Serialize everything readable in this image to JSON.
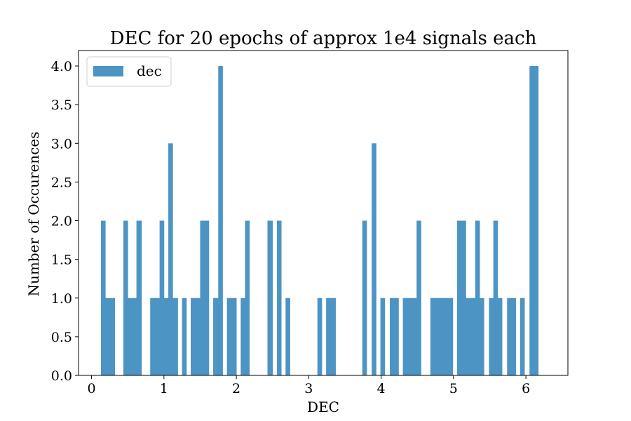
{
  "chart_data": {
    "type": "bar",
    "title": "DEC for 20 epochs of approx 1e4 signals each",
    "xlabel": "DEC",
    "ylabel": "Number of Occurences",
    "xlim": [
      -0.18,
      6.58
    ],
    "ylim": [
      0,
      4.2
    ],
    "xticks": [
      {
        "value": 0,
        "label": "0"
      },
      {
        "value": 1,
        "label": "1"
      },
      {
        "value": 2,
        "label": "2"
      },
      {
        "value": 3,
        "label": "3"
      },
      {
        "value": 4,
        "label": "4"
      },
      {
        "value": 5,
        "label": "5"
      },
      {
        "value": 6,
        "label": "6"
      }
    ],
    "yticks": [
      {
        "value": 0,
        "label": "0.0"
      },
      {
        "value": 0.5,
        "label": "0.5"
      },
      {
        "value": 1,
        "label": "1.0"
      },
      {
        "value": 1.5,
        "label": "1.5"
      },
      {
        "value": 2,
        "label": "2.0"
      },
      {
        "value": 2.5,
        "label": "2.5"
      },
      {
        "value": 3,
        "label": "3.0"
      },
      {
        "value": 3.5,
        "label": "3.5"
      },
      {
        "value": 4,
        "label": "4.0"
      }
    ],
    "grid": false,
    "legend": {
      "position": "top-left",
      "entries": [
        {
          "label": "dec",
          "color": "#4c94c4"
        }
      ]
    },
    "series": [
      {
        "name": "dec",
        "color": "#4c94c4",
        "bin_edges": [
          0.13,
          0.19,
          0.26,
          0.32,
          0.38,
          0.44,
          0.5,
          0.56,
          0.62,
          0.69,
          0.75,
          0.81,
          0.87,
          0.94,
          1.0,
          1.06,
          1.12,
          1.19,
          1.25,
          1.31,
          1.37,
          1.44,
          1.5,
          1.56,
          1.62,
          1.68,
          1.75,
          1.81,
          1.87,
          1.93,
          2.0,
          2.06,
          2.12,
          2.18,
          2.25,
          2.31,
          2.37,
          2.43,
          2.5,
          2.56,
          2.62,
          2.68,
          2.74,
          2.81,
          2.87,
          2.93,
          2.99,
          3.06,
          3.12,
          3.18,
          3.24,
          3.31,
          3.37,
          3.43,
          3.49,
          3.55,
          3.62,
          3.68,
          3.74,
          3.8,
          3.87,
          3.93,
          3.99,
          4.05,
          4.12,
          4.18,
          4.24,
          4.3,
          4.36,
          4.43,
          4.49,
          4.55,
          4.61,
          4.68,
          4.74,
          4.8,
          4.86,
          4.93,
          4.99,
          5.05,
          5.11,
          5.17,
          5.24,
          5.3,
          5.36,
          5.42,
          5.49,
          5.55,
          5.61,
          5.67,
          5.74,
          5.8,
          5.86,
          5.92,
          5.98,
          6.05,
          6.11,
          6.17,
          6.23,
          6.3
        ],
        "counts": [
          2,
          1,
          1,
          0,
          0,
          2,
          1,
          1,
          2,
          0,
          0,
          1,
          1,
          2,
          1,
          3,
          1,
          0,
          1,
          0,
          1,
          1,
          2,
          2,
          0,
          1,
          4,
          0,
          1,
          1,
          0,
          1,
          2,
          0,
          0,
          0,
          0,
          2,
          0,
          2,
          0,
          1,
          0,
          0,
          0,
          0,
          0,
          0,
          1,
          0,
          1,
          1,
          0,
          0,
          0,
          0,
          0,
          0,
          2,
          0,
          3,
          0,
          1,
          0,
          1,
          1,
          0,
          1,
          1,
          1,
          2,
          0,
          0,
          1,
          1,
          1,
          1,
          1,
          0,
          2,
          2,
          1,
          1,
          2,
          1,
          0,
          1,
          2,
          1,
          0,
          1,
          1,
          0,
          1,
          0,
          4,
          4,
          0,
          0
        ]
      }
    ]
  }
}
